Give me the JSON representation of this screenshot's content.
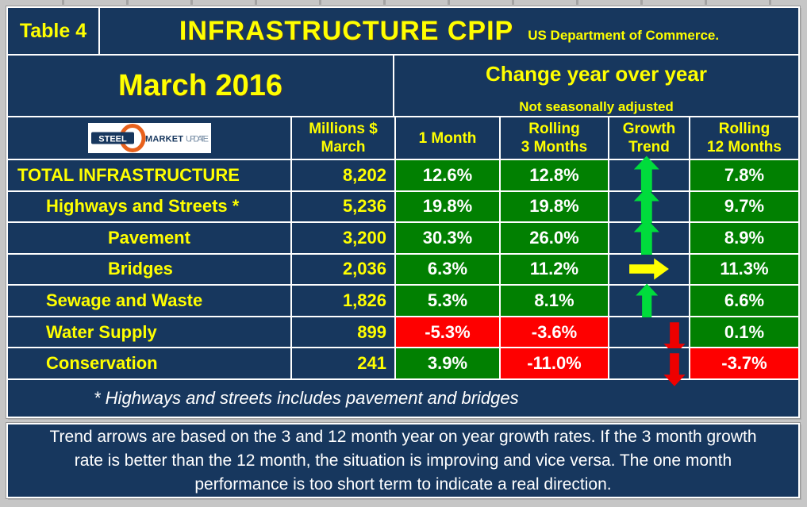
{
  "header": {
    "table_label": "Table 4",
    "title": "INFRASTRUCTURE  CPIP",
    "agency": "US Department of Commerce.",
    "month": "March 2016",
    "change_title": "Change year over year",
    "change_note": "Not seasonally adjusted"
  },
  "logo": {
    "part1": "STEEL",
    "part2": "MARKET",
    "part3": "UPDATE"
  },
  "columns": {
    "millions_line1": "Millions $",
    "millions_line2": "March",
    "m1": "1 Month",
    "m3_line1": "Rolling",
    "m3_line2": "3 Months",
    "trend_line1": "Growth",
    "trend_line2": "Trend",
    "m12_line1": "Rolling",
    "m12_line2": "12 Months"
  },
  "rows": [
    {
      "label": "TOTAL INFRASTRUCTURE",
      "indent": 0,
      "millions": "8,202",
      "m1": {
        "value": "12.6%",
        "color": "green"
      },
      "m3": {
        "value": "12.8%",
        "color": "green"
      },
      "trend": "up",
      "m12": {
        "value": "7.8%",
        "color": "green"
      }
    },
    {
      "label": "Highways and Streets *",
      "indent": 1,
      "millions": "5,236",
      "m1": {
        "value": "19.8%",
        "color": "green"
      },
      "m3": {
        "value": "19.8%",
        "color": "green"
      },
      "trend": "up",
      "m12": {
        "value": "9.7%",
        "color": "green"
      }
    },
    {
      "label": "Pavement",
      "indent": 2,
      "millions": "3,200",
      "m1": {
        "value": "30.3%",
        "color": "green"
      },
      "m3": {
        "value": "26.0%",
        "color": "green"
      },
      "trend": "up",
      "m12": {
        "value": "8.9%",
        "color": "green"
      }
    },
    {
      "label": "Bridges",
      "indent": 2,
      "millions": "2,036",
      "m1": {
        "value": "6.3%",
        "color": "green"
      },
      "m3": {
        "value": "11.2%",
        "color": "green"
      },
      "trend": "right",
      "m12": {
        "value": "11.3%",
        "color": "green"
      }
    },
    {
      "label": "Sewage and Waste",
      "indent": 1,
      "millions": "1,826",
      "m1": {
        "value": "5.3%",
        "color": "green"
      },
      "m3": {
        "value": "8.1%",
        "color": "green"
      },
      "trend": "up_small",
      "m12": {
        "value": "6.6%",
        "color": "green"
      }
    },
    {
      "label": "Water Supply",
      "indent": 1,
      "millions": "899",
      "m1": {
        "value": "-5.3%",
        "color": "red"
      },
      "m3": {
        "value": "-3.6%",
        "color": "red"
      },
      "trend": "down",
      "m12": {
        "value": "0.1%",
        "color": "green"
      }
    },
    {
      "label": "Conservation",
      "indent": 1,
      "millions": "241",
      "m1": {
        "value": "3.9%",
        "color": "green"
      },
      "m3": {
        "value": "-11.0%",
        "color": "red"
      },
      "trend": "down",
      "m12": {
        "value": "-3.7%",
        "color": "red"
      }
    }
  ],
  "footnote": "* Highways and streets includes pavement and bridges",
  "bottom_note_lines": [
    "Trend arrows are based on the 3 and 12 month year on year growth rates. If the 3 month growth",
    "rate is better than the 12 month, the situation is improving and vice versa. The one month",
    "performance is too short term to indicate a real direction."
  ],
  "colors": {
    "navy": "#17375E",
    "cell_green": "#018001",
    "cell_red": "#FE0000",
    "yellow": "#FFFF00",
    "arrow_up_green": "#00DC3C",
    "arrow_right_yellow": "#FFFF00",
    "arrow_down_red": "#EE0000",
    "frame_gray": "#C6C6C6"
  },
  "chart_data": {
    "type": "table",
    "title": "INFRASTRUCTURE CPIP — March 2016",
    "source": "US Department of Commerce.",
    "note": "Change year over year, Not seasonally adjusted",
    "columns": [
      "Category",
      "Millions $ March",
      "1 Month",
      "Rolling 3 Months",
      "Growth Trend",
      "Rolling 12 Months"
    ],
    "rows": [
      [
        "TOTAL INFRASTRUCTURE",
        "8,202",
        "12.6%",
        "12.8%",
        "up",
        "7.8%"
      ],
      [
        "Highways and Streets *",
        "5,236",
        "19.8%",
        "19.8%",
        "up",
        "9.7%"
      ],
      [
        "Pavement",
        "3,200",
        "30.3%",
        "26.0%",
        "up",
        "8.9%"
      ],
      [
        "Bridges",
        "2,036",
        "6.3%",
        "11.2%",
        "sideways",
        "11.3%"
      ],
      [
        "Sewage and Waste",
        "1,826",
        "5.3%",
        "8.1%",
        "up",
        "6.6%"
      ],
      [
        "Water Supply",
        "899",
        "-5.3%",
        "-3.6%",
        "down",
        "0.1%"
      ],
      [
        "Conservation",
        "241",
        "3.9%",
        "-11.0%",
        "down",
        "-3.7%"
      ]
    ]
  }
}
